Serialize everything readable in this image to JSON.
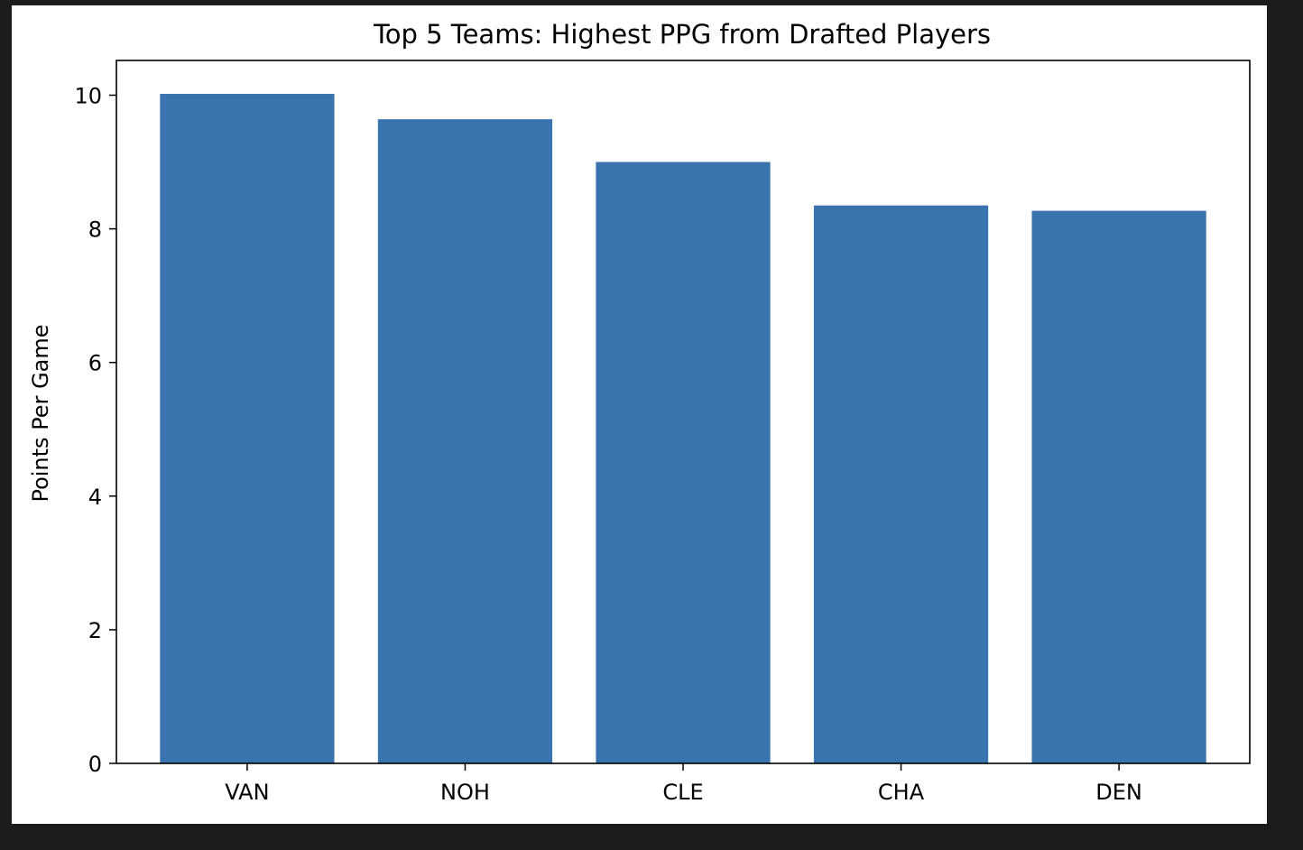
{
  "chart_data": {
    "type": "bar",
    "title": "Top 5 Teams: Highest PPG from Drafted Players",
    "xlabel": "",
    "ylabel": "Points Per Game",
    "categories": [
      "VAN",
      "NOH",
      "CLE",
      "CHA",
      "DEN"
    ],
    "values": [
      10.02,
      9.64,
      9.0,
      8.35,
      8.27
    ],
    "ylim": [
      0,
      10.52
    ],
    "yticks": [
      0,
      2,
      4,
      6,
      8,
      10
    ],
    "grid": false,
    "bar_color": "#3a74ae"
  }
}
